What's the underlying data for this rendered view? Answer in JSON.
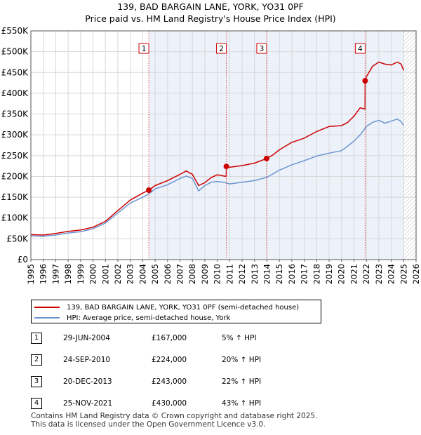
{
  "chart_data": {
    "type": "line",
    "title": "139, BAD BARGAIN LANE, YORK, YO31 0PF",
    "subtitle": "Price paid vs. HM Land Registry's House Price Index (HPI)",
    "xlabel": "",
    "ylabel": "",
    "xlim": [
      1995,
      2026
    ],
    "ylim": [
      0,
      550000
    ],
    "x_ticks": [
      "1995",
      "1996",
      "1997",
      "1998",
      "1999",
      "2000",
      "2001",
      "2002",
      "2003",
      "2004",
      "2005",
      "2006",
      "2007",
      "2008",
      "2009",
      "2010",
      "2011",
      "2012",
      "2013",
      "2014",
      "2015",
      "2016",
      "2017",
      "2018",
      "2019",
      "2020",
      "2021",
      "2022",
      "2023",
      "2024",
      "2025",
      "2026"
    ],
    "y_ticks": [
      {
        "value": 0,
        "label": "£0"
      },
      {
        "value": 50000,
        "label": "£50K"
      },
      {
        "value": 100000,
        "label": "£100K"
      },
      {
        "value": 150000,
        "label": "£150K"
      },
      {
        "value": 200000,
        "label": "£200K"
      },
      {
        "value": 250000,
        "label": "£250K"
      },
      {
        "value": 300000,
        "label": "£300K"
      },
      {
        "value": 350000,
        "label": "£350K"
      },
      {
        "value": 400000,
        "label": "£400K"
      },
      {
        "value": 450000,
        "label": "£450K"
      },
      {
        "value": 500000,
        "label": "£500K"
      },
      {
        "value": 550000,
        "label": "£550K"
      }
    ],
    "grid": true,
    "future_hatch_from": 2025.0,
    "series": [
      {
        "name": "139, BAD BARGAIN LANE, YORK, YO31 0PF (semi-detached house)",
        "color": "#cc0000",
        "x": [
          1995.0,
          1996.0,
          1997.0,
          1998.0,
          1999.0,
          2000.0,
          2001.0,
          2002.0,
          2003.0,
          2004.0,
          2004.49,
          2004.5,
          2005.0,
          2006.0,
          2007.0,
          2007.5,
          2008.0,
          2008.5,
          2009.0,
          2009.5,
          2010.0,
          2010.72,
          2010.73,
          2011.0,
          2012.0,
          2013.0,
          2013.96,
          2013.97,
          2014.5,
          2015.0,
          2016.0,
          2017.0,
          2018.0,
          2019.0,
          2020.0,
          2020.5,
          2021.0,
          2021.5,
          2021.89,
          2021.9,
          2022.0,
          2022.5,
          2023.0,
          2023.5,
          2024.0,
          2024.5,
          2024.8,
          2025.0
        ],
        "values": [
          60000,
          59000,
          63000,
          68000,
          71000,
          78000,
          92000,
          118000,
          143000,
          160000,
          167000,
          167000,
          178000,
          190000,
          205000,
          213000,
          205000,
          178000,
          185000,
          197000,
          204000,
          200000,
          224000,
          222000,
          226000,
          232000,
          243000,
          243000,
          252000,
          264000,
          282000,
          292000,
          308000,
          320000,
          322000,
          330000,
          345000,
          365000,
          362000,
          430000,
          440000,
          465000,
          475000,
          470000,
          468000,
          475000,
          470000,
          455000
        ]
      },
      {
        "name": "HPI: Average price, semi-detached house, York",
        "color": "#6a95d0",
        "x": [
          1995.0,
          1996.0,
          1997.0,
          1998.0,
          1999.0,
          2000.0,
          2001.0,
          2002.0,
          2003.0,
          2004.0,
          2004.5,
          2005.0,
          2006.0,
          2007.0,
          2007.5,
          2008.0,
          2008.5,
          2009.0,
          2009.5,
          2010.0,
          2010.5,
          2011.0,
          2012.0,
          2013.0,
          2014.0,
          2015.0,
          2016.0,
          2017.0,
          2018.0,
          2019.0,
          2020.0,
          2020.5,
          2021.0,
          2021.5,
          2022.0,
          2022.5,
          2023.0,
          2023.5,
          2024.0,
          2024.5,
          2024.8,
          2025.0
        ],
        "values": [
          57000,
          56000,
          59000,
          64000,
          67000,
          74000,
          88000,
          112000,
          136000,
          150000,
          158000,
          170000,
          180000,
          195000,
          201000,
          195000,
          165000,
          178000,
          186000,
          188000,
          186000,
          182000,
          186000,
          190000,
          198000,
          215000,
          228000,
          238000,
          249000,
          256000,
          262000,
          273000,
          285000,
          300000,
          320000,
          330000,
          335000,
          328000,
          333000,
          338000,
          332000,
          322000
        ]
      }
    ],
    "sales": [
      {
        "marker": "1",
        "x": 2004.49,
        "value": 167000,
        "date": "29-JUN-2004",
        "price": "£167,000",
        "hpi": "5% ↑ HPI"
      },
      {
        "marker": "2",
        "x": 2010.73,
        "value": 224000,
        "date": "24-SEP-2010",
        "price": "£224,000",
        "hpi": "20% ↑ HPI"
      },
      {
        "marker": "3",
        "x": 2013.97,
        "value": 243000,
        "date": "20-DEC-2013",
        "price": "£243,000",
        "hpi": "22% ↑ HPI"
      },
      {
        "marker": "4",
        "x": 2021.9,
        "value": 430000,
        "date": "25-NOV-2021",
        "price": "£430,000",
        "hpi": "43% ↑ HPI"
      }
    ]
  },
  "legend": {
    "property_label": "139, BAD BARGAIN LANE, YORK, YO31 0PF (semi-detached house)",
    "hpi_label": "HPI: Average price, semi-detached house, York"
  },
  "footer": {
    "line1": "Contains HM Land Registry data © Crown copyright and database right 2025.",
    "line2": "This data is licensed under the Open Government Licence v3.0."
  }
}
